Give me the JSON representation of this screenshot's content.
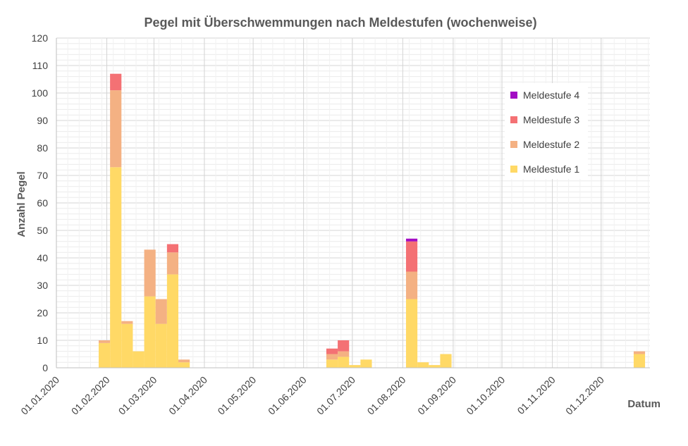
{
  "chart_data": {
    "type": "bar",
    "stacked": true,
    "title": "Pegel mit Überschwemmungen nach Meldestufen (wochenweise)",
    "xlabel": "Datum",
    "ylabel": "Anzahl Pegel",
    "ylim": [
      0,
      120
    ],
    "yticks": [
      0,
      10,
      20,
      30,
      40,
      50,
      60,
      70,
      80,
      90,
      100,
      110,
      120
    ],
    "xlim": [
      "2020-01-01",
      "2020-12-31"
    ],
    "xticks": [
      "01.01.2020",
      "01.02.2020",
      "01.03.2020",
      "01.04.2020",
      "01.05.2020",
      "01.06.2020",
      "01.07.2020",
      "01.08.2020",
      "01.09.2020",
      "01.10.2020",
      "01.11.2020",
      "01.12.2020"
    ],
    "xtick_dates": [
      "2020-01-01",
      "2020-02-01",
      "2020-03-01",
      "2020-04-01",
      "2020-05-01",
      "2020-06-01",
      "2020-07-01",
      "2020-08-01",
      "2020-09-01",
      "2020-10-01",
      "2020-11-01",
      "2020-12-01"
    ],
    "grid": true,
    "legend_position": "top-right",
    "weeks": [
      "2020-01-27",
      "2020-02-03",
      "2020-02-10",
      "2020-02-17",
      "2020-02-24",
      "2020-03-02",
      "2020-03-09",
      "2020-03-16",
      "2020-06-15",
      "2020-06-22",
      "2020-06-29",
      "2020-07-06",
      "2020-08-03",
      "2020-08-10",
      "2020-08-17",
      "2020-08-24",
      "2020-12-21"
    ],
    "series": [
      {
        "name": "Meldestufe 1",
        "color": "#ffd966",
        "values": [
          9,
          73,
          16,
          6,
          26,
          16,
          34,
          2,
          3,
          4,
          1,
          3,
          25,
          2,
          1,
          5,
          5
        ]
      },
      {
        "name": "Meldestufe 2",
        "color": "#f4b183",
        "values": [
          1,
          28,
          1,
          0,
          17,
          9,
          8,
          1,
          2,
          2,
          0,
          0,
          10,
          0,
          0,
          0,
          1
        ]
      },
      {
        "name": "Meldestufe 3",
        "color": "#f47174",
        "values": [
          0,
          6,
          0,
          0,
          0,
          0,
          3,
          0,
          2,
          4,
          0,
          0,
          11,
          0,
          0,
          0,
          0
        ]
      },
      {
        "name": "Meldestufe 4",
        "color": "#a20dc4",
        "values": [
          0,
          0,
          0,
          0,
          0,
          0,
          0,
          0,
          0,
          0,
          0,
          0,
          1,
          0,
          0,
          0,
          0
        ]
      }
    ],
    "legend_order": [
      "Meldestufe 4",
      "Meldestufe 3",
      "Meldestufe 2",
      "Meldestufe 1"
    ]
  }
}
